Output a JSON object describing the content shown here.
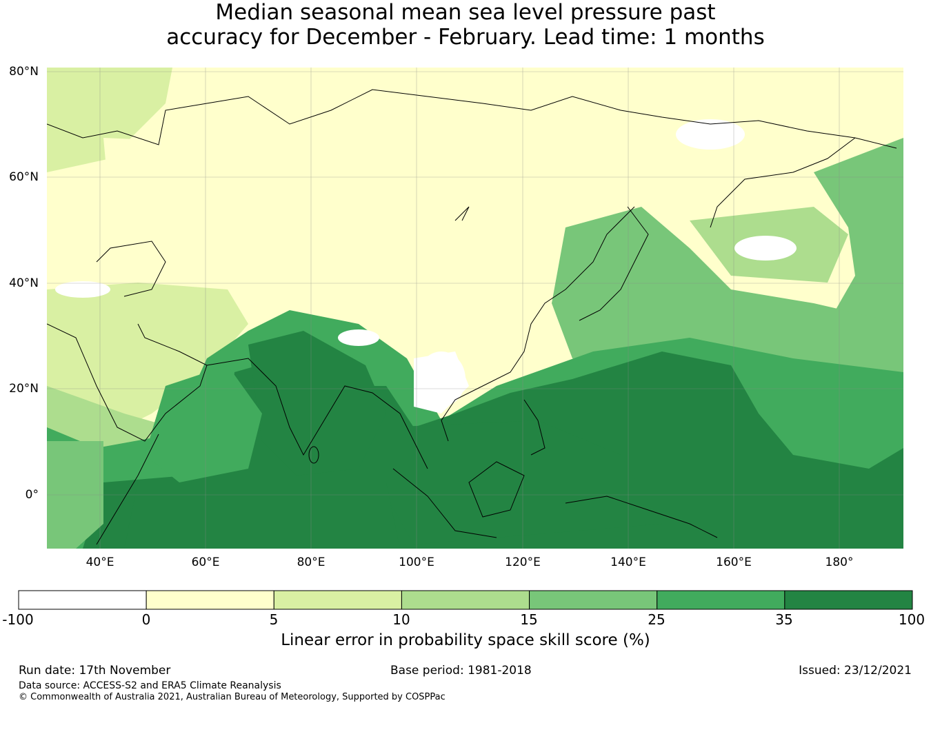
{
  "title": {
    "line1": "Median seasonal mean sea level pressure past",
    "line2": "accuracy for December - February. Lead time: 1 months"
  },
  "map": {
    "lat_labels": [
      "80°N",
      "60°N",
      "40°N",
      "20°N",
      "0°"
    ],
    "lon_labels": [
      "40°E",
      "60°E",
      "80°E",
      "100°E",
      "120°E",
      "140°E",
      "160°E",
      "180°"
    ],
    "region_values": {
      "arctic_siberia": 0,
      "central_asia": 3,
      "mongolia_tibet": 2,
      "south_china": -10,
      "middle_east": 8,
      "arabia_horn": 12,
      "east_asia_japan": 18,
      "north_pacific": 20,
      "west_pacific_north": 10,
      "bay_of_bengal": 38,
      "arabian_sea": 30,
      "indian_ocean_south": 40,
      "maritime_continent": 40,
      "tropical_pacific": 38,
      "central_pacific": 28,
      "east_africa": 15,
      "northwest_europe": 6
    }
  },
  "colorbar": {
    "bounds": [
      "-100",
      "0",
      "5",
      "10",
      "15",
      "25",
      "35",
      "100"
    ],
    "colors": [
      "#ffffff",
      "#ffffcc",
      "#d9f0a3",
      "#addd8e",
      "#78c679",
      "#41ab5d",
      "#238443"
    ],
    "label": "Linear error in probability space skill score (%)"
  },
  "footer": {
    "run_date": "Run date: 17th November",
    "base_period": "Base period: 1981-2018",
    "issued": "Issued: 23/12/2021",
    "data_source": "Data source: ACCESS-S2 and ERA5 Climate Reanalysis",
    "copyright": "© Commonwealth of Australia 2021, Australian Bureau of Meteorology, Supported by COSPPac"
  }
}
